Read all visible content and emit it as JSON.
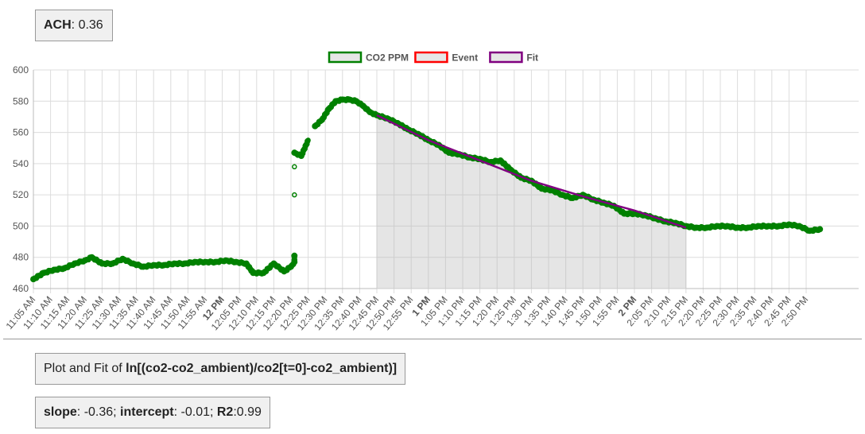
{
  "ach": {
    "label": "ACH",
    "value": "0.36"
  },
  "fit_title": {
    "prefix": "Plot and Fit of ",
    "expression": "ln[(co2-co2_ambient)/co2[t=0]-co2_ambient)]"
  },
  "stats": {
    "slope_label": "slope",
    "slope_value": "-0.36",
    "intercept_label": "intercept",
    "intercept_value": "-0.01",
    "r2_label": "R2",
    "r2_value": "0.99"
  },
  "chart_data": {
    "type": "scatter",
    "x_unit": "time of day",
    "x_range": [
      "11:05",
      "14:55"
    ],
    "ylim": [
      460,
      600
    ],
    "yticks": [
      460,
      480,
      500,
      520,
      540,
      560,
      580,
      600
    ],
    "grid": true,
    "legend_position": "top",
    "xtick_labels": [
      "11:05 AM",
      "11:10 AM",
      "11:15 AM",
      "11:20 AM",
      "11:25 AM",
      "11:30 AM",
      "11:35 AM",
      "11:40 AM",
      "11:45 AM",
      "11:50 AM",
      "11:55 AM",
      "12 PM",
      "12:05 PM",
      "12:10 PM",
      "12:15 PM",
      "12:20 PM",
      "12:25 PM",
      "12:30 PM",
      "12:35 PM",
      "12:40 PM",
      "12:45 PM",
      "12:50 PM",
      "12:55 PM",
      "1 PM",
      "1:05 PM",
      "1:10 PM",
      "1:15 PM",
      "1:20 PM",
      "1:25 PM",
      "1:30 PM",
      "1:35 PM",
      "1:40 PM",
      "1:45 PM",
      "1:50 PM",
      "1:55 PM",
      "2 PM",
      "2:05 PM",
      "2:10 PM",
      "2:15 PM",
      "2:20 PM",
      "2:25 PM",
      "2:30 PM",
      "2:35 PM",
      "2:40 PM",
      "2:45 PM",
      "2:50 PM"
    ],
    "bold_xtick_labels": [
      "12 PM",
      "1 PM",
      "2 PM"
    ],
    "series": [
      {
        "name": "CO2 PPM",
        "color": "#008000",
        "points": [
          [
            "11:05",
            466
          ],
          [
            "11:08",
            470
          ],
          [
            "11:11",
            472
          ],
          [
            "11:14",
            473
          ],
          [
            "11:17",
            476
          ],
          [
            "11:20",
            478
          ],
          [
            "11:22",
            480
          ],
          [
            "11:25",
            476
          ],
          [
            "11:28",
            476
          ],
          [
            "11:31",
            479
          ],
          [
            "11:34",
            476
          ],
          [
            "11:37",
            474
          ],
          [
            "11:40",
            475
          ],
          [
            "11:43",
            475
          ],
          [
            "11:46",
            476
          ],
          [
            "11:49",
            476
          ],
          [
            "11:52",
            477
          ],
          [
            "11:55",
            477
          ],
          [
            "11:58",
            477
          ],
          [
            "12:01",
            478
          ],
          [
            "12:04",
            477
          ],
          [
            "12:07",
            476
          ],
          [
            "12:09",
            470
          ],
          [
            "12:12",
            470
          ],
          [
            "12:15",
            476
          ],
          [
            "12:18",
            471
          ],
          [
            "12:20",
            474
          ],
          [
            "12:21",
            477
          ],
          [
            "12:21",
            481
          ],
          [
            "12:21",
            520
          ],
          [
            "12:21",
            538
          ],
          [
            "12:21",
            547
          ],
          [
            "12:23",
            545
          ],
          [
            "12:25",
            555
          ],
          [
            "12:27",
            564
          ],
          [
            "12:29",
            568
          ],
          [
            "12:31",
            575
          ],
          [
            "12:33",
            580
          ],
          [
            "12:35",
            581
          ],
          [
            "12:37",
            581
          ],
          [
            "12:39",
            580
          ],
          [
            "12:41",
            577
          ],
          [
            "12:43",
            573
          ],
          [
            "12:45",
            571
          ],
          [
            "12:48",
            569
          ],
          [
            "12:51",
            566
          ],
          [
            "12:54",
            562
          ],
          [
            "12:57",
            559
          ],
          [
            "13:00",
            555
          ],
          [
            "13:03",
            552
          ],
          [
            "13:06",
            547
          ],
          [
            "13:09",
            546
          ],
          [
            "13:12",
            544
          ],
          [
            "13:15",
            543
          ],
          [
            "13:18",
            541
          ],
          [
            "13:21",
            542
          ],
          [
            "13:24",
            536
          ],
          [
            "13:27",
            531
          ],
          [
            "13:30",
            529
          ],
          [
            "13:33",
            524
          ],
          [
            "13:36",
            523
          ],
          [
            "13:39",
            520
          ],
          [
            "13:42",
            518
          ],
          [
            "13:45",
            520
          ],
          [
            "13:48",
            517
          ],
          [
            "13:51",
            515
          ],
          [
            "13:54",
            513
          ],
          [
            "13:57",
            508
          ],
          [
            "14:00",
            508
          ],
          [
            "14:03",
            507
          ],
          [
            "14:06",
            505
          ],
          [
            "14:09",
            503
          ],
          [
            "14:12",
            502
          ],
          [
            "14:15",
            500
          ],
          [
            "14:18",
            499
          ],
          [
            "14:21",
            499
          ],
          [
            "14:24",
            500
          ],
          [
            "14:27",
            500
          ],
          [
            "14:30",
            499
          ],
          [
            "14:33",
            499
          ],
          [
            "14:36",
            500
          ],
          [
            "14:39",
            500
          ],
          [
            "14:42",
            500
          ],
          [
            "14:45",
            501
          ],
          [
            "14:48",
            500
          ],
          [
            "14:51",
            497
          ],
          [
            "14:54",
            498
          ]
        ]
      },
      {
        "name": "Event",
        "color": "#ff0000",
        "shaded_range": [
          "12:45",
          "14:15"
        ]
      },
      {
        "name": "Fit",
        "color": "#800080",
        "points": [
          [
            "12:45",
            571
          ],
          [
            "13:00",
            555
          ],
          [
            "13:15",
            542
          ],
          [
            "13:30",
            529
          ],
          [
            "13:45",
            519
          ],
          [
            "14:00",
            510
          ],
          [
            "14:15",
            499
          ]
        ]
      }
    ]
  }
}
